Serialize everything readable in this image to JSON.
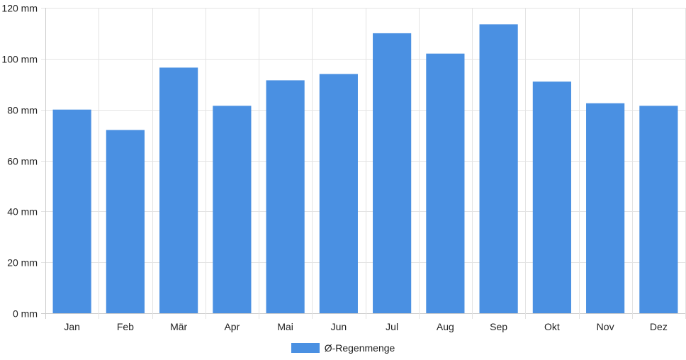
{
  "chart_data": {
    "type": "bar",
    "categories": [
      "Jan",
      "Feb",
      "Mär",
      "Apr",
      "Mai",
      "Jun",
      "Jul",
      "Aug",
      "Sep",
      "Okt",
      "Nov",
      "Dez"
    ],
    "series": [
      {
        "name": "Ø-Regenmenge",
        "values": [
          80,
          72,
          96.5,
          81.5,
          91.5,
          94,
          110,
          102,
          113.5,
          91,
          82.5,
          81.5
        ]
      }
    ],
    "y_tick_labels": [
      "0 mm",
      "20 mm",
      "40 mm",
      "60 mm",
      "80 mm",
      "100 mm",
      "120 mm"
    ],
    "ylim": [
      0,
      120
    ],
    "y_unit": "mm",
    "grid": true,
    "legend_position": "bottom",
    "colors": {
      "bar": "#4a90e2",
      "grid": "#e3e3e3",
      "axis": "#cccccc"
    }
  }
}
